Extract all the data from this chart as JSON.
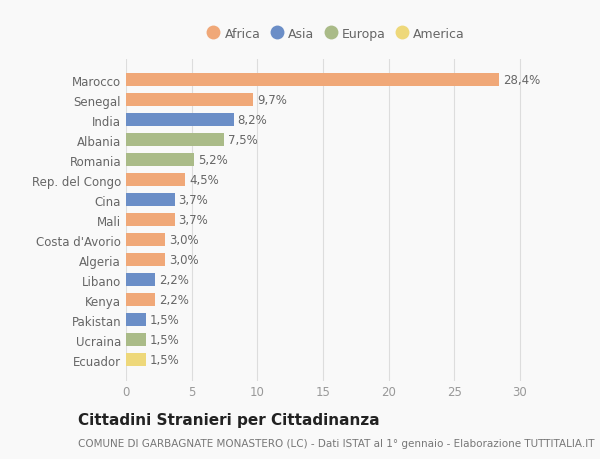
{
  "categories": [
    "Marocco",
    "Senegal",
    "India",
    "Albania",
    "Romania",
    "Rep. del Congo",
    "Cina",
    "Mali",
    "Costa d'Avorio",
    "Algeria",
    "Libano",
    "Kenya",
    "Pakistan",
    "Ucraina",
    "Ecuador"
  ],
  "values": [
    28.4,
    9.7,
    8.2,
    7.5,
    5.2,
    4.5,
    3.7,
    3.7,
    3.0,
    3.0,
    2.2,
    2.2,
    1.5,
    1.5,
    1.5
  ],
  "labels": [
    "28,4%",
    "9,7%",
    "8,2%",
    "7,5%",
    "5,2%",
    "4,5%",
    "3,7%",
    "3,7%",
    "3,0%",
    "3,0%",
    "2,2%",
    "2,2%",
    "1,5%",
    "1,5%",
    "1,5%"
  ],
  "continents": [
    "Africa",
    "Africa",
    "Asia",
    "Europa",
    "Europa",
    "Africa",
    "Asia",
    "Africa",
    "Africa",
    "Africa",
    "Asia",
    "Africa",
    "Asia",
    "Europa",
    "America"
  ],
  "colors": {
    "Africa": "#F0A878",
    "Asia": "#6B8EC7",
    "Europa": "#AABB88",
    "America": "#EED87A"
  },
  "legend_order": [
    "Africa",
    "Asia",
    "Europa",
    "America"
  ],
  "title": "Cittadini Stranieri per Cittadinanza",
  "subtitle": "COMUNE DI GARBAGNATE MONASTERO (LC) - Dati ISTAT al 1° gennaio - Elaborazione TUTTITALIA.IT",
  "xlim": [
    0,
    32
  ],
  "xticks": [
    0,
    5,
    10,
    15,
    20,
    25,
    30
  ],
  "background_color": "#f9f9f9",
  "bar_height": 0.65,
  "label_fontsize": 8.5,
  "tick_fontsize": 8.5,
  "title_fontsize": 11,
  "subtitle_fontsize": 7.5
}
